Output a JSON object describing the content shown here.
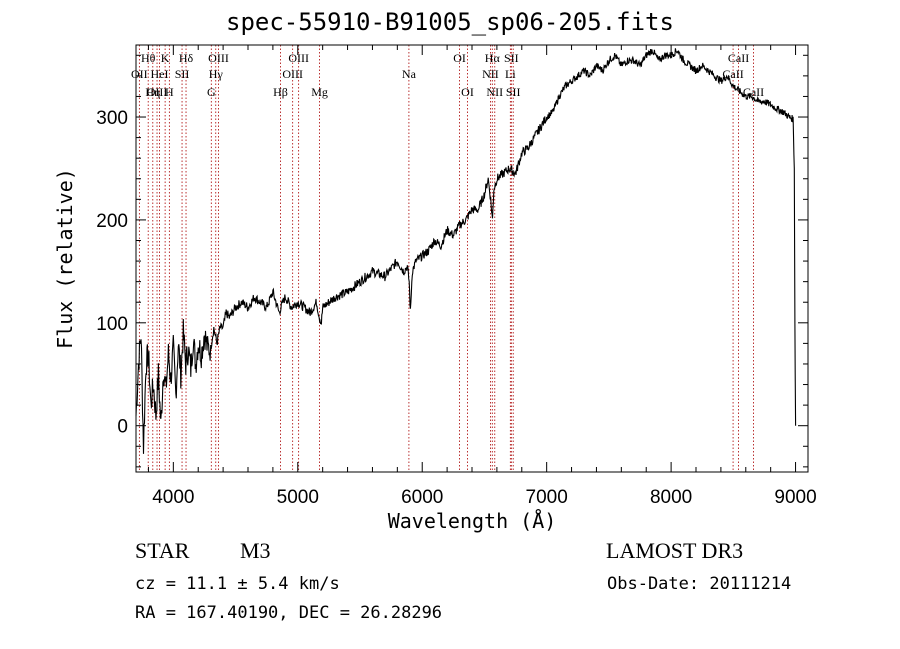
{
  "chart_data": {
    "type": "line",
    "title": "spec-55910-B91005_sp06-205.fits",
    "xlabel": "Wavelength (Å)",
    "ylabel": "Flux (relative)",
    "xlim": [
      3700,
      9100
    ],
    "ylim": [
      -45,
      370
    ],
    "xticks": [
      4000,
      5000,
      6000,
      7000,
      8000,
      9000
    ],
    "yticks": [
      0,
      100,
      200,
      300
    ],
    "series": [
      {
        "name": "flux",
        "x": [
          3700,
          3720,
          3740,
          3760,
          3780,
          3800,
          3820,
          3840,
          3860,
          3880,
          3900,
          3920,
          3940,
          3960,
          3980,
          4000,
          4020,
          4040,
          4060,
          4080,
          4100,
          4120,
          4140,
          4160,
          4180,
          4200,
          4225,
          4250,
          4275,
          4300,
          4325,
          4350,
          4375,
          4400,
          4425,
          4450,
          4475,
          4500,
          4550,
          4600,
          4650,
          4700,
          4750,
          4800,
          4850,
          4880,
          4900,
          4950,
          5000,
          5050,
          5100,
          5150,
          5175,
          5190,
          5200,
          5250,
          5300,
          5400,
          5500,
          5600,
          5700,
          5800,
          5850,
          5880,
          5895,
          5905,
          5920,
          5950,
          6000,
          6050,
          6100,
          6150,
          6200,
          6250,
          6300,
          6350,
          6400,
          6450,
          6500,
          6530,
          6550,
          6565,
          6575,
          6600,
          6650,
          6700,
          6750,
          6800,
          6850,
          6900,
          6950,
          7000,
          7050,
          7100,
          7150,
          7200,
          7250,
          7300,
          7350,
          7400,
          7450,
          7500,
          7550,
          7600,
          7650,
          7700,
          7750,
          7800,
          7850,
          7900,
          7950,
          8000,
          8050,
          8100,
          8150,
          8200,
          8250,
          8300,
          8350,
          8400,
          8450,
          8500,
          8550,
          8600,
          8650,
          8700,
          8750,
          8800,
          8850,
          8900,
          8950,
          8980,
          8990,
          8995,
          9000
        ],
        "values": [
          10,
          60,
          90,
          -20,
          60,
          70,
          20,
          40,
          10,
          50,
          0,
          55,
          35,
          70,
          45,
          75,
          30,
          80,
          50,
          90,
          60,
          75,
          55,
          85,
          60,
          80,
          70,
          90,
          75,
          75,
          95,
          80,
          95,
          95,
          110,
          105,
          110,
          115,
          120,
          115,
          125,
          120,
          115,
          130,
          110,
          120,
          125,
          115,
          120,
          115,
          110,
          120,
          105,
          100,
          115,
          120,
          125,
          130,
          140,
          150,
          145,
          160,
          150,
          155,
          140,
          110,
          150,
          160,
          165,
          170,
          180,
          175,
          190,
          185,
          195,
          200,
          210,
          210,
          225,
          240,
          220,
          200,
          230,
          240,
          245,
          250,
          245,
          265,
          270,
          280,
          290,
          300,
          305,
          320,
          330,
          335,
          340,
          345,
          340,
          350,
          345,
          355,
          360,
          350,
          355,
          355,
          350,
          360,
          365,
          355,
          360,
          360,
          365,
          355,
          350,
          345,
          350,
          345,
          340,
          335,
          340,
          330,
          325,
          320,
          320,
          315,
          315,
          312,
          308,
          305,
          300,
          298,
          250,
          100,
          0
        ]
      }
    ],
    "lines": [
      {
        "label": "Hθ",
        "x": 3798,
        "row": 1
      },
      {
        "label": "OII",
        "x": 3727,
        "row": 2
      },
      {
        "label": "OIII",
        "x": 3869,
        "row": 3
      },
      {
        "label": "K",
        "x": 3934,
        "row": 1
      },
      {
        "label": "HeI",
        "x": 3889,
        "row": 2
      },
      {
        "label": "Hη",
        "x": 3835,
        "row": 3
      },
      {
        "label": "Hδ",
        "x": 4102,
        "row": 1
      },
      {
        "label": "SII",
        "x": 4070,
        "row": 2
      },
      {
        "label": "H",
        "x": 3968,
        "row": 3
      },
      {
        "label": "OIII",
        "x": 4363,
        "row": 1
      },
      {
        "label": "Hγ",
        "x": 4341,
        "row": 2
      },
      {
        "label": "G",
        "x": 4305,
        "row": 3
      },
      {
        "label": "OIII",
        "x": 5007,
        "row": 1
      },
      {
        "label": "OIII",
        "x": 4959,
        "row": 2
      },
      {
        "label": "Hβ",
        "x": 4861,
        "row": 3
      },
      {
        "label": "Mg",
        "x": 5175,
        "row": 3
      },
      {
        "label": "Na",
        "x": 5893,
        "row": 2
      },
      {
        "label": "OI",
        "x": 6300,
        "row": 1
      },
      {
        "label": "OI",
        "x": 6364,
        "row": 3
      },
      {
        "label": "Hα",
        "x": 6563,
        "row": 1
      },
      {
        "label": "SII",
        "x": 6716,
        "row": 1
      },
      {
        "label": "NII",
        "x": 6548,
        "row": 2
      },
      {
        "label": "Li",
        "x": 6708,
        "row": 2
      },
      {
        "label": "NII",
        "x": 6583,
        "row": 3
      },
      {
        "label": "SII",
        "x": 6731,
        "row": 3
      },
      {
        "label": "CaII",
        "x": 8542,
        "row": 1
      },
      {
        "label": "CaII",
        "x": 8498,
        "row": 2
      },
      {
        "label": "CaII",
        "x": 8662,
        "row": 3
      }
    ]
  },
  "info": {
    "class": "STAR",
    "subclass": "M3",
    "survey": "LAMOST DR3",
    "cz": "cz = 11.1 ± 5.4 km/s",
    "obs_date": "Obs-Date: 20111214",
    "radec": "RA = 167.40190, DEC =  26.28296"
  },
  "colors": {
    "axis": "#000000",
    "spectrum": "#000000",
    "line_marker": "#aa0000"
  }
}
